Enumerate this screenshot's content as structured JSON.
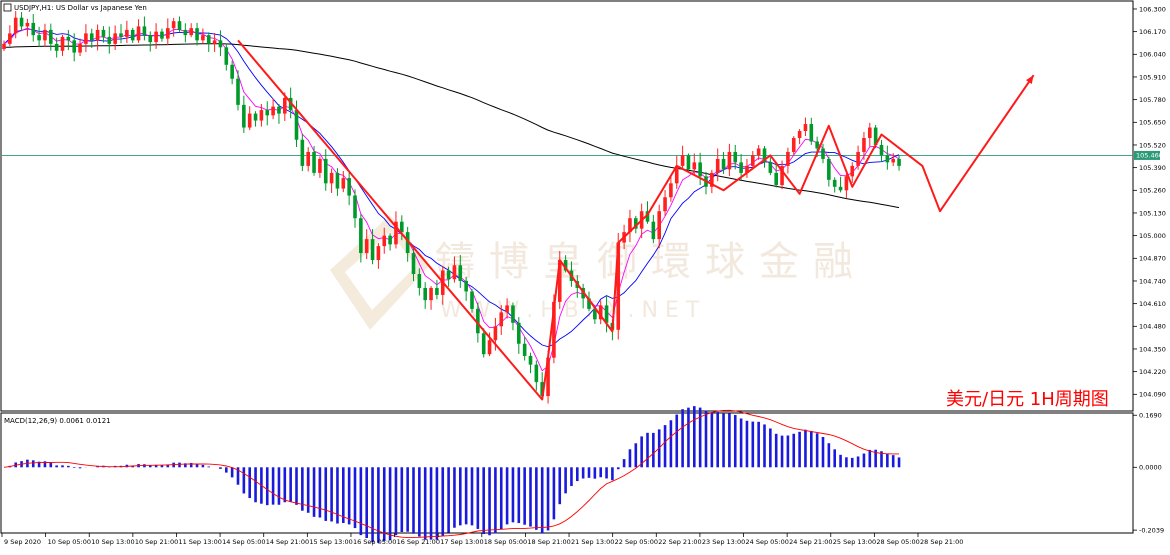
{
  "header": {
    "symbol_label": "USDJPY,H1:  US Dollar vs Japanese Yen",
    "macd_label": "MACD(12,26,9) 0.0061 0.0121"
  },
  "watermark": {
    "cn": "鑄博皇御環球金融",
    "en": "W W W . H B F X . N E T"
  },
  "annotation": "美元/日元 1H周期图",
  "current_price": "105.460",
  "colors": {
    "bull": "#ff2020",
    "bear": "#009a2a",
    "ma_fast": "#ff00ff",
    "ma_mid": "#0000ff",
    "ma_slow": "#000000",
    "arrow": "#ff1a1a",
    "price_line": "#2c9a78",
    "macd_hist": "#1a1adc",
    "macd_signal": "#ff0000",
    "annotation": "#ff0000"
  },
  "chart_data": {
    "type": "candlestick",
    "price_axis": {
      "min": 104.0,
      "max": 106.34,
      "ticks": [
        "106.300",
        "106.170",
        "106.040",
        "105.910",
        "105.780",
        "105.650",
        "105.520",
        "105.390",
        "105.260",
        "105.130",
        "105.000",
        "104.870",
        "104.740",
        "104.610",
        "104.480",
        "104.350",
        "104.220",
        "104.090"
      ]
    },
    "macd_axis": {
      "min": -0.21,
      "max": 0.173,
      "ticks": [
        "0.1690",
        "0.0000",
        "-0.2039"
      ]
    },
    "time_labels": [
      "9 Sep 2020",
      "10 Sep 05:00",
      "10 Sep 13:00",
      "10 Sep 21:00",
      "11 Sep 13:00",
      "14 Sep 05:00",
      "14 Sep 21:00",
      "15 Sep 13:00",
      "16 Sep 05:00",
      "16 Sep 21:00",
      "17 Sep 13:00",
      "18 Sep 05:00",
      "18 Sep 21:00",
      "21 Sep 13:00",
      "22 Sep 05:00",
      "22 Sep 21:00",
      "23 Sep 13:00",
      "24 Sep 05:00",
      "24 Sep 21:00",
      "25 Sep 13:00",
      "28 Sep 05:00",
      "28 Sep 21:00"
    ],
    "closes": [
      106.1,
      106.16,
      106.25,
      106.2,
      106.22,
      106.15,
      106.12,
      106.18,
      106.1,
      106.06,
      106.14,
      106.12,
      106.05,
      106.1,
      106.16,
      106.12,
      106.18,
      106.14,
      106.1,
      106.16,
      106.14,
      106.18,
      106.12,
      106.2,
      106.15,
      106.11,
      106.17,
      106.13,
      106.19,
      106.23,
      106.18,
      106.15,
      106.19,
      106.12,
      106.15,
      106.1,
      106.12,
      106.08,
      105.98,
      105.9,
      105.75,
      105.62,
      105.7,
      105.66,
      105.72,
      105.69,
      105.74,
      105.7,
      105.79,
      105.72,
      105.55,
      105.4,
      105.48,
      105.36,
      105.44,
      105.3,
      105.36,
      105.27,
      105.33,
      105.23,
      105.1,
      104.9,
      104.98,
      104.86,
      104.94,
      105.0,
      104.95,
      105.08,
      105.02,
      104.9,
      104.78,
      104.7,
      104.63,
      104.7,
      104.66,
      104.8,
      104.75,
      104.83,
      104.74,
      104.68,
      104.58,
      104.44,
      104.32,
      104.4,
      104.48,
      104.56,
      104.6,
      104.5,
      104.38,
      104.31,
      104.26,
      104.16,
      104.08,
      104.3,
      104.62,
      104.86,
      104.8,
      104.74,
      104.7,
      104.64,
      104.58,
      104.52,
      104.6,
      104.5,
      104.46,
      104.96,
      105.02,
      105.1,
      105.04,
      105.14,
      105.08,
      104.98,
      105.14,
      105.22,
      105.3,
      105.4,
      105.46,
      105.38,
      105.42,
      105.34,
      105.28,
      105.36,
      105.44,
      105.38,
      105.48,
      105.42,
      105.36,
      105.4,
      105.46,
      105.5,
      105.42,
      105.36,
      105.29,
      105.4,
      105.48,
      105.56,
      105.6,
      105.64,
      105.54,
      105.5,
      105.44,
      105.32,
      105.28,
      105.26,
      105.34,
      105.4,
      105.48,
      105.56,
      105.62,
      105.52,
      105.46,
      105.42,
      105.44,
      105.4
    ]
  }
}
